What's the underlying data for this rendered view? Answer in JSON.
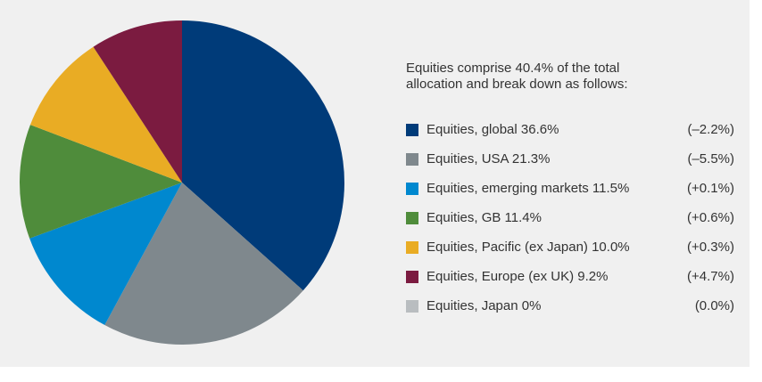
{
  "chart_data": {
    "type": "pie",
    "subtitle": "Equities comprise 40.4% of the total allocation and break down as follows:",
    "categories": [
      "Equities, global",
      "Equities, USA",
      "Equities, emerging markets",
      "Equities, GB",
      "Equities, Pacific (ex Japan)",
      "Equities, Europe (ex UK)",
      "Equities, Japan"
    ],
    "values": [
      36.6,
      21.3,
      11.5,
      11.4,
      10.0,
      9.2,
      0
    ],
    "value_labels": [
      "36.6%",
      "21.3%",
      "11.5%",
      "11.4%",
      "10.0%",
      "9.2%",
      "0%"
    ],
    "changes": [
      "(–2.2%)",
      "(–5.5%)",
      "(+0.1%)",
      "(+0.6%)",
      "(+0.3%)",
      "(+4.7%)",
      "(0.0%)"
    ],
    "colors": [
      "#003b79",
      "#7f888d",
      "#0088cf",
      "#4f8c3b",
      "#e9ac24",
      "#7b1b40",
      "#b9bdc0"
    ]
  }
}
